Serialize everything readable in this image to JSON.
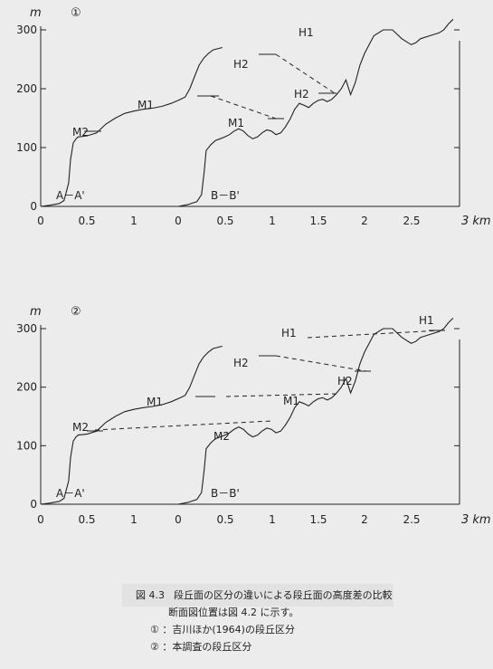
{
  "chart_data": [
    {
      "type": "line",
      "panel_label": "①",
      "y_unit": "m",
      "x_unit": "3 km",
      "ylim": [
        0,
        300
      ],
      "yticks": [
        "0",
        "100",
        "200",
        "300"
      ],
      "xticks_A": [
        "0",
        "0.5",
        "1"
      ],
      "xticks_B": [
        "0",
        "0.5",
        "1",
        "1.5",
        "2",
        "2.5"
      ],
      "profile_A": {
        "name": "A－A'",
        "x": [
          0,
          0.1,
          0.2,
          0.25,
          0.3,
          0.32,
          0.35,
          0.38,
          0.4,
          0.5,
          0.6,
          0.7,
          0.8,
          0.9,
          1.0,
          1.1,
          1.2,
          1.3,
          1.4,
          1.5,
          1.55,
          1.6,
          1.65,
          1.7,
          1.75,
          1.8,
          1.85,
          1.95
        ],
        "y": [
          0,
          2,
          5,
          10,
          40,
          80,
          108,
          115,
          118,
          120,
          125,
          140,
          150,
          158,
          162,
          165,
          167,
          170,
          175,
          182,
          186,
          200,
          220,
          240,
          252,
          260,
          266,
          270
        ]
      },
      "profile_B": {
        "name": "B－B'",
        "x": [
          0,
          0.1,
          0.2,
          0.25,
          0.28,
          0.3,
          0.35,
          0.4,
          0.45,
          0.5,
          0.55,
          0.6,
          0.65,
          0.7,
          0.75,
          0.8,
          0.85,
          0.9,
          0.95,
          1.0,
          1.05,
          1.1,
          1.15,
          1.2,
          1.25,
          1.3,
          1.35,
          1.4,
          1.45,
          1.5,
          1.55,
          1.6,
          1.65,
          1.7,
          1.75,
          1.8,
          1.85,
          1.9,
          1.95,
          2.0,
          2.05,
          2.1,
          2.2,
          2.3,
          2.4,
          2.5,
          2.55,
          2.6,
          2.7,
          2.8,
          2.85,
          2.9,
          2.95
        ],
        "y": [
          0,
          3,
          8,
          20,
          60,
          95,
          105,
          112,
          115,
          118,
          122,
          128,
          132,
          128,
          120,
          115,
          118,
          125,
          130,
          128,
          122,
          125,
          135,
          148,
          165,
          175,
          172,
          168,
          175,
          180,
          182,
          178,
          182,
          190,
          200,
          215,
          190,
          210,
          240,
          260,
          275,
          290,
          300,
          300,
          285,
          275,
          278,
          285,
          290,
          295,
          300,
          310,
          318
        ]
      },
      "labels": [
        "H1",
        "H2",
        "M1",
        "M2",
        "H2",
        "M1"
      ]
    },
    {
      "type": "line",
      "panel_label": "②",
      "y_unit": "m",
      "x_unit": "3 km",
      "ylim": [
        0,
        300
      ],
      "yticks": [
        "0",
        "100",
        "200",
        "300"
      ],
      "xticks_A": [
        "0",
        "0.5",
        "1"
      ],
      "xticks_B": [
        "0",
        "0.5",
        "1",
        "1.5",
        "2",
        "2.5"
      ],
      "profile_A": {
        "name": "A－A'",
        "x": [
          0,
          0.1,
          0.2,
          0.25,
          0.3,
          0.32,
          0.35,
          0.38,
          0.4,
          0.5,
          0.6,
          0.7,
          0.8,
          0.9,
          1.0,
          1.1,
          1.2,
          1.3,
          1.4,
          1.5,
          1.55,
          1.6,
          1.65,
          1.7,
          1.75,
          1.8,
          1.85,
          1.95
        ],
        "y": [
          0,
          2,
          5,
          10,
          40,
          80,
          108,
          115,
          118,
          120,
          125,
          140,
          150,
          158,
          162,
          165,
          167,
          170,
          175,
          182,
          186,
          200,
          220,
          240,
          252,
          260,
          266,
          270
        ]
      },
      "profile_B": {
        "name": "B－B'",
        "x": [
          0,
          0.1,
          0.2,
          0.25,
          0.28,
          0.3,
          0.35,
          0.4,
          0.45,
          0.5,
          0.55,
          0.6,
          0.65,
          0.7,
          0.75,
          0.8,
          0.85,
          0.9,
          0.95,
          1.0,
          1.05,
          1.1,
          1.15,
          1.2,
          1.25,
          1.3,
          1.35,
          1.4,
          1.45,
          1.5,
          1.55,
          1.6,
          1.65,
          1.7,
          1.75,
          1.8,
          1.85,
          1.9,
          1.95,
          2.0,
          2.05,
          2.1,
          2.2,
          2.3,
          2.4,
          2.5,
          2.55,
          2.6,
          2.7,
          2.8,
          2.85,
          2.9,
          2.95
        ],
        "y": [
          0,
          3,
          8,
          20,
          60,
          95,
          105,
          112,
          115,
          118,
          122,
          128,
          132,
          128,
          120,
          115,
          118,
          125,
          130,
          128,
          122,
          125,
          135,
          148,
          165,
          175,
          172,
          168,
          175,
          180,
          182,
          178,
          182,
          190,
          200,
          215,
          190,
          210,
          240,
          260,
          275,
          290,
          300,
          300,
          285,
          275,
          278,
          285,
          290,
          295,
          300,
          310,
          318
        ]
      },
      "labels": [
        "H1",
        "H2",
        "M1",
        "M2",
        "H1",
        "H2",
        "M1",
        "M2"
      ]
    }
  ],
  "caption": {
    "figure_no": "図 4.3",
    "line1": "段丘面の区分の違いによる段丘面の高度差の比較",
    "line2": "断面図位置は図 4.2 に示す。",
    "legend1_mark": "①",
    "legend1_text": "：吉川ほか(1964)の段丘区分",
    "legend2_mark": "②",
    "legend2_text": "：本調査の段丘区分"
  }
}
